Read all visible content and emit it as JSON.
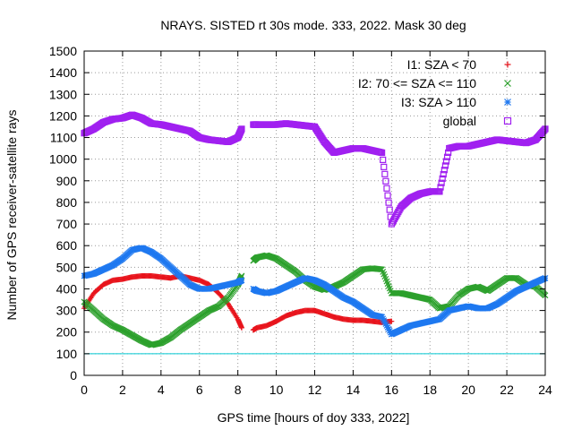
{
  "chart_data": {
    "type": "scatter",
    "title": "NRAYS. SISTED rt 30s mode. 333, 2022. Mask 30 deg",
    "xlabel": "GPS time [hours of doy 333, 2022]",
    "ylabel": "Number of GPS receiver-satellite rays",
    "xlim": [
      0,
      24
    ],
    "ylim": [
      0,
      1500
    ],
    "xticks": [
      0,
      2,
      4,
      6,
      8,
      10,
      12,
      14,
      16,
      18,
      20,
      22,
      24
    ],
    "xtick_labels": [
      "0",
      "2",
      "4",
      "6",
      "8",
      "10",
      "12",
      "14",
      "16",
      "18",
      "20",
      "22",
      "24"
    ],
    "yticks": [
      0,
      100,
      200,
      300,
      400,
      500,
      600,
      700,
      800,
      900,
      1000,
      1100,
      1200,
      1300,
      1400,
      1500
    ],
    "ytick_labels": [
      "0",
      "100",
      "200",
      "300",
      "400",
      "500",
      "600",
      "700",
      "800",
      "900",
      "1000",
      "1100",
      "1200",
      "1300",
      "1400",
      "1500"
    ],
    "grid": true,
    "legend_position": "top-right",
    "reference_line": {
      "y": 100,
      "color": "#00c8d0"
    },
    "data_gap": [
      8.2,
      8.8
    ],
    "series": [
      {
        "name": "I1: SZA < 70",
        "marker": "plus",
        "color": "#e8141c",
        "x": [
          0,
          0.5,
          1,
          1.5,
          2,
          2.5,
          3,
          3.5,
          4,
          4.5,
          5,
          5.5,
          6,
          6.5,
          7,
          7.5,
          8,
          8.2,
          8.8,
          9,
          9.5,
          10,
          10.5,
          11,
          11.5,
          12,
          12.5,
          13,
          13.5,
          14,
          14.5,
          15,
          15.5,
          16
        ],
        "values": [
          310,
          380,
          420,
          440,
          445,
          455,
          460,
          460,
          455,
          450,
          460,
          450,
          440,
          420,
          380,
          330,
          260,
          220,
          210,
          220,
          230,
          250,
          275,
          290,
          300,
          300,
          285,
          270,
          260,
          255,
          255,
          250,
          245,
          250
        ]
      },
      {
        "name": "I2: 70 <= SZA <= 110",
        "marker": "x",
        "color": "#2ca02c",
        "x": [
          0,
          0.5,
          1,
          1.5,
          2,
          2.5,
          3,
          3.5,
          4,
          4.5,
          5,
          5.5,
          6,
          6.5,
          7,
          7.5,
          8,
          8.2,
          8.8,
          9,
          9.5,
          10,
          10.5,
          11,
          11.5,
          12,
          12.5,
          13,
          13.5,
          14,
          14.5,
          15,
          15.5,
          16,
          16.5,
          17,
          17.5,
          18,
          18.5,
          19,
          19.5,
          20,
          20.5,
          21,
          21.5,
          22,
          22.5,
          23,
          23.5,
          24
        ],
        "values": [
          340,
          300,
          260,
          230,
          210,
          185,
          160,
          140,
          150,
          175,
          210,
          240,
          270,
          300,
          320,
          360,
          420,
          460,
          530,
          545,
          555,
          540,
          510,
          480,
          440,
          410,
          395,
          410,
          430,
          460,
          490,
          495,
          490,
          380,
          380,
          370,
          360,
          350,
          310,
          320,
          370,
          400,
          410,
          390,
          420,
          450,
          450,
          420,
          410,
          370
        ]
      },
      {
        "name": "I3: SZA > 110",
        "marker": "star",
        "color": "#1e78f0",
        "x": [
          0,
          0.5,
          1,
          1.5,
          2,
          2.5,
          3,
          3.5,
          4,
          4.5,
          5,
          5.5,
          6,
          6.5,
          7,
          7.5,
          8,
          8.2,
          8.8,
          9,
          9.5,
          10,
          10.5,
          11,
          11.5,
          12,
          12.5,
          13,
          13.5,
          14,
          14.5,
          15,
          15.5,
          16,
          16.5,
          17,
          17.5,
          18,
          18.5,
          19,
          19.5,
          20,
          20.5,
          21,
          21.5,
          22,
          22.5,
          23,
          23.5,
          24
        ],
        "values": [
          460,
          470,
          490,
          510,
          540,
          580,
          590,
          570,
          540,
          500,
          460,
          420,
          400,
          400,
          410,
          420,
          430,
          440,
          400,
          390,
          380,
          390,
          410,
          430,
          450,
          440,
          420,
          390,
          360,
          340,
          310,
          280,
          270,
          190,
          210,
          230,
          240,
          250,
          260,
          300,
          310,
          320,
          310,
          310,
          330,
          360,
          390,
          410,
          430,
          450
        ]
      },
      {
        "name": "global",
        "marker": "square",
        "color": "#a020f0",
        "x": [
          0,
          0.5,
          1,
          1.5,
          2,
          2.5,
          3,
          3.5,
          4,
          4.5,
          5,
          5.5,
          6,
          6.5,
          7,
          7.5,
          8,
          8.2,
          8.8,
          9,
          9.5,
          10,
          10.5,
          11,
          11.5,
          12,
          12.5,
          13,
          13.5,
          14,
          14.5,
          15,
          15.5,
          16,
          16.5,
          17,
          17.5,
          18,
          18.5,
          19,
          19.5,
          20,
          20.5,
          21,
          21.5,
          22,
          22.5,
          23,
          23.5,
          24
        ],
        "values": [
          1120,
          1140,
          1170,
          1185,
          1190,
          1205,
          1190,
          1165,
          1160,
          1150,
          1140,
          1130,
          1100,
          1090,
          1085,
          1080,
          1100,
          1140,
          1160,
          1160,
          1160,
          1160,
          1165,
          1160,
          1155,
          1150,
          1080,
          1030,
          1040,
          1050,
          1050,
          1040,
          1030,
          700,
          780,
          820,
          840,
          850,
          850,
          1050,
          1060,
          1060,
          1070,
          1080,
          1090,
          1085,
          1080,
          1075,
          1090,
          1140
        ]
      }
    ]
  }
}
